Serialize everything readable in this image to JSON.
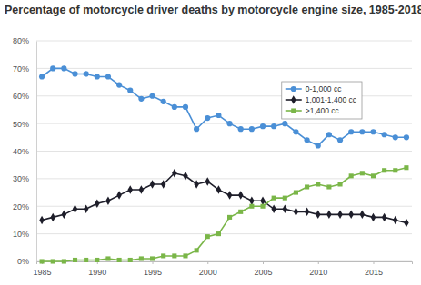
{
  "chart_data": {
    "type": "line",
    "title": "Percentage of motorcycle driver deaths by motorcycle engine size, 1985-2018",
    "x": [
      1985,
      1986,
      1987,
      1988,
      1989,
      1990,
      1991,
      1992,
      1993,
      1994,
      1995,
      1996,
      1997,
      1998,
      1999,
      2000,
      2001,
      2002,
      2003,
      2004,
      2005,
      2006,
      2007,
      2008,
      2009,
      2010,
      2011,
      2012,
      2013,
      2014,
      2015,
      2016,
      2017,
      2018
    ],
    "series": [
      {
        "name": "0-1,000 cc",
        "color": "#4a8fd6",
        "marker": "circle",
        "values": [
          67,
          70,
          70,
          68,
          68,
          67,
          67,
          64,
          62,
          59,
          60,
          58,
          56,
          56,
          48,
          52,
          53,
          50,
          48,
          48,
          49,
          49,
          50,
          47,
          44,
          42,
          46,
          44,
          47,
          47,
          47,
          46,
          45,
          45
        ]
      },
      {
        "name": "1,001-1,400 cc",
        "color": "#1e1e2a",
        "marker": "diamond",
        "values": [
          15,
          16,
          17,
          19,
          19,
          21,
          22,
          24,
          26,
          26,
          28,
          28,
          32,
          31,
          28,
          29,
          26,
          24,
          24,
          22,
          22,
          19,
          19,
          18,
          18,
          17,
          17,
          17,
          17,
          17,
          16,
          16,
          15,
          14
        ]
      },
      {
        "name": ">1,400 cc",
        "color": "#7ab648",
        "marker": "square",
        "values": [
          0,
          0,
          0,
          0.5,
          0.5,
          0.5,
          1,
          0.5,
          0.5,
          1,
          1,
          2,
          2,
          2,
          4,
          9,
          10,
          16,
          18,
          20,
          20,
          23,
          23,
          25,
          27,
          28,
          27,
          28,
          31,
          32,
          31,
          33,
          33,
          34
        ]
      }
    ],
    "xlim": [
      1984.5,
      2018.5
    ],
    "xticks": [
      1985,
      1990,
      1995,
      2000,
      2005,
      2010,
      2015
    ],
    "ylim": [
      0,
      80
    ],
    "yticks": [
      {
        "value": 0,
        "label": "0%"
      },
      {
        "value": 10,
        "label": "10%"
      },
      {
        "value": 20,
        "label": "20%"
      },
      {
        "value": 30,
        "label": "30%"
      },
      {
        "value": 40,
        "label": "40%"
      },
      {
        "value": 50,
        "label": "50%"
      },
      {
        "value": 60,
        "label": "60%"
      },
      {
        "value": 70,
        "label": "70%"
      },
      {
        "value": 80,
        "label": "80%"
      }
    ],
    "grid": true,
    "legend": "upper right"
  }
}
